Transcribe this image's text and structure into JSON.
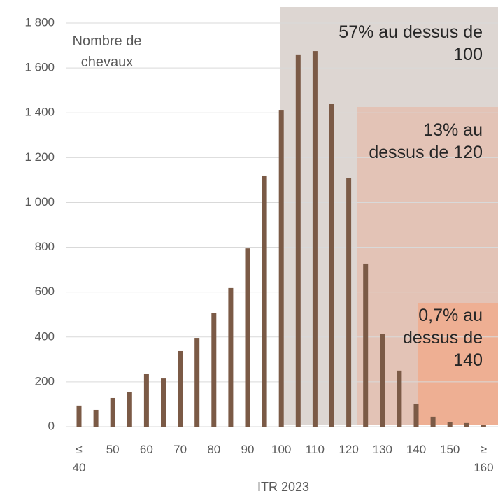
{
  "chart_data": {
    "type": "bar",
    "y_label": "Nombre de chevaux",
    "x_label": "ITR 2023",
    "annotations": [
      "57% au dessus de 100",
      "13% au dessus de 120",
      "0,7% au dessus de 140"
    ],
    "categories": [
      "≤ 40",
      null,
      "50",
      null,
      "60",
      null,
      "70",
      null,
      "80",
      null,
      "90",
      null,
      "100",
      null,
      "110",
      null,
      "120",
      null,
      "130",
      null,
      "140",
      null,
      "150",
      null,
      "≥ 160"
    ],
    "values": [
      94,
      75,
      128,
      156,
      234,
      215,
      337,
      396,
      508,
      618,
      795,
      1120,
      1413,
      1660,
      1675,
      1441,
      1110,
      727,
      412,
      250,
      103,
      44,
      19,
      16,
      9
    ],
    "color": "#7b5a46",
    "ylim": [
      0,
      1800
    ],
    "yticks": [
      0,
      200,
      400,
      600,
      800,
      {
        "value": 1000,
        "label": "1 000"
      },
      {
        "value": 1200,
        "label": "1 200"
      },
      {
        "value": 1400,
        "label": "1 400"
      },
      {
        "value": 1600,
        "label": "1 600"
      },
      {
        "value": 1800,
        "label": "1 800"
      }
    ],
    "grid": true
  }
}
